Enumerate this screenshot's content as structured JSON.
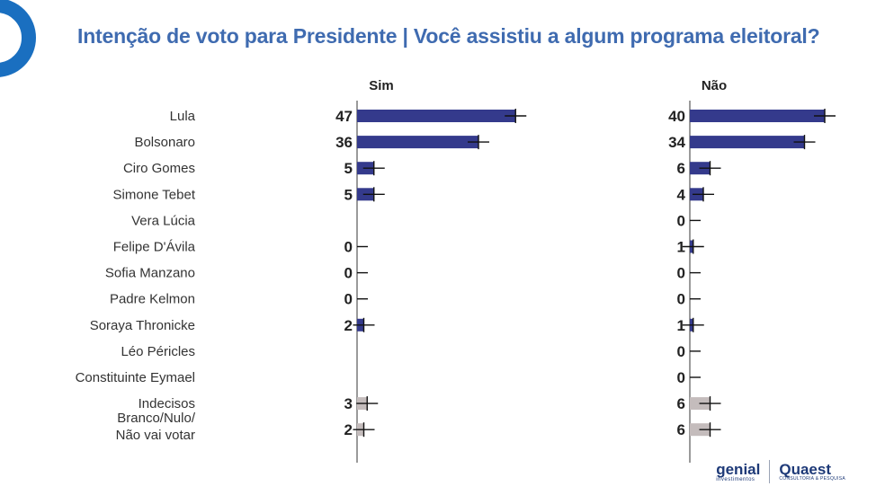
{
  "title": "Intenção de voto para Presidente | Você assistiu a algum programa eleitoral?",
  "logos": {
    "genial": "genial",
    "genial_sub": "investimentos",
    "quaest": "Quaest",
    "quaest_sub": "CONSULTORIA & PESQUISA"
  },
  "colors": {
    "title": "#3f6bb0",
    "candidate_bar": "#343a8c",
    "other_bar": "#c4bcbc",
    "ring": "#1a6fc0",
    "axis": "#9a9a9a"
  },
  "chart_data": {
    "type": "bar",
    "orientation": "horizontal",
    "title": "Intenção de voto para Presidente | Você assistiu a algum programa eleitoral?",
    "categories": [
      "Lula",
      "Bolsonaro",
      "Ciro Gomes",
      "Simone Tebet",
      "Vera Lúcia",
      "Felipe D'Ávila",
      "Sofia Manzano",
      "Padre Kelmon",
      "Soraya Thronicke",
      "Léo Péricles",
      "Constituinte Eymael",
      "Indecisos",
      "Branco/Nulo/ Não vai votar"
    ],
    "highlight_categories": [
      "Indecisos",
      "Branco/Nulo/ Não vai votar"
    ],
    "series": [
      {
        "name": "Sim",
        "values": [
          47,
          36,
          5,
          5,
          null,
          0,
          0,
          0,
          2,
          null,
          null,
          3,
          2
        ]
      },
      {
        "name": "Não",
        "values": [
          40,
          34,
          6,
          4,
          0,
          1,
          0,
          0,
          1,
          0,
          0,
          6,
          6
        ]
      }
    ],
    "error_bars": true,
    "xlim": [
      0,
      100
    ],
    "grid": false,
    "legend": "none"
  }
}
